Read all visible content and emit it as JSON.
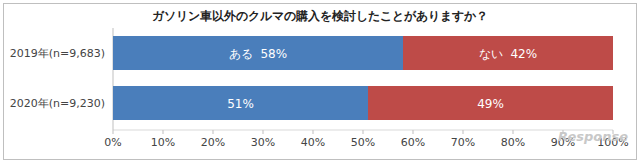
{
  "chart_data": {
    "type": "bar",
    "orientation": "horizontal",
    "stacked": true,
    "title": "ガソリン車以外のクルマの購入を検討したことがありますか？",
    "categories": [
      "2019年(n=9,683)",
      "2020年(n=9,230)"
    ],
    "series": [
      {
        "name": "ある",
        "color": "#4a7ebb",
        "values": [
          58,
          51
        ],
        "value_labels": [
          "58%",
          "51%"
        ]
      },
      {
        "name": "ない",
        "color": "#be4b48",
        "values": [
          42,
          49
        ],
        "value_labels": [
          "42%",
          "49%"
        ]
      }
    ],
    "xlim": [
      0,
      100
    ],
    "xticks": [
      {
        "value": 0,
        "label": "0%"
      },
      {
        "value": 10,
        "label": "10%"
      },
      {
        "value": 20,
        "label": "20%"
      },
      {
        "value": 30,
        "label": "30%"
      },
      {
        "value": 40,
        "label": "40%"
      },
      {
        "value": 50,
        "label": "50%"
      },
      {
        "value": 60,
        "label": "60%"
      },
      {
        "value": 70,
        "label": "70%"
      },
      {
        "value": 80,
        "label": "80%"
      },
      {
        "value": 90,
        "label": "90%"
      },
      {
        "value": 100,
        "label": "100%"
      }
    ],
    "grid": false,
    "data_labels": true,
    "annotations": [
      "Response"
    ]
  }
}
